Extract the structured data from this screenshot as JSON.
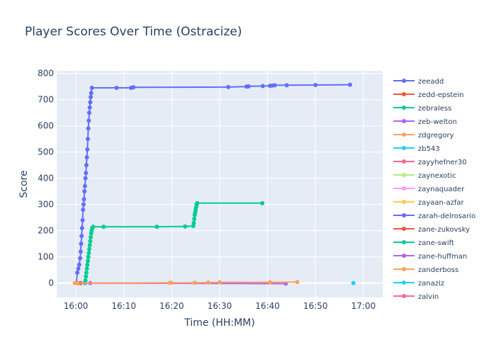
{
  "chart_data": {
    "type": "line",
    "title": "Player Scores Over Time (Ostracize)",
    "xlabel": "Time (HH:MM)",
    "ylabel": "Score",
    "x_range_minutes": [
      -4,
      64
    ],
    "ylim": [
      -55,
      810
    ],
    "x_ticks": [
      {
        "minute": 0,
        "label": "16:00"
      },
      {
        "minute": 10,
        "label": "16:10"
      },
      {
        "minute": 20,
        "label": "16:20"
      },
      {
        "minute": 30,
        "label": "16:30"
      },
      {
        "minute": 40,
        "label": "16:40"
      },
      {
        "minute": 50,
        "label": "16:50"
      },
      {
        "minute": 60,
        "label": "17:00"
      }
    ],
    "y_ticks": [
      0,
      100,
      200,
      300,
      400,
      500,
      600,
      700,
      800
    ],
    "grid": true,
    "legend_position": "right",
    "legend_truncated": true,
    "series": [
      {
        "name": "zeeadd",
        "color": "#636efa",
        "minutes": [
          0.1,
          0.3,
          0.5,
          0.7,
          0.9,
          1.0,
          1.1,
          1.2,
          1.3,
          1.4,
          1.5,
          1.6,
          1.7,
          1.8,
          1.9,
          2.0,
          2.1,
          2.2,
          2.3,
          2.4,
          2.5,
          2.6,
          2.7,
          2.8,
          2.9,
          3.0,
          3.1,
          3.2,
          3.35,
          8.5,
          11.5,
          12.0,
          31.8,
          35.6,
          36.0,
          39.0,
          40.5,
          41.0,
          41.5,
          44.0,
          50.0,
          57.2
        ],
        "values": [
          0,
          40,
          55,
          70,
          95,
          120,
          150,
          180,
          210,
          240,
          280,
          300,
          320,
          350,
          370,
          400,
          420,
          450,
          480,
          510,
          550,
          590,
          620,
          650,
          670,
          690,
          710,
          725,
          745,
          745,
          745,
          747,
          748,
          750,
          751,
          752,
          753,
          754,
          755,
          755,
          756,
          757
        ]
      },
      {
        "name": "zedd-epstein",
        "color": "#ef553b",
        "minutes": [
          0.4,
          1.0
        ],
        "values": [
          0,
          0
        ]
      },
      {
        "name": "zebraless",
        "color": "#00cc96",
        "minutes": [
          1.9,
          2.0,
          2.1,
          2.2,
          2.3,
          2.4,
          2.5,
          2.6,
          2.7,
          2.8,
          2.9,
          3.0,
          3.1,
          3.2,
          3.3,
          3.4,
          3.6,
          5.8,
          16.9,
          22.8,
          24.5,
          24.6,
          24.7,
          24.8,
          24.9,
          25.0,
          25.1,
          25.2,
          25.3,
          38.9
        ],
        "values": [
          0,
          10,
          25,
          40,
          55,
          70,
          85,
          100,
          115,
          130,
          145,
          160,
          175,
          190,
          200,
          210,
          215,
          215,
          215,
          216,
          218,
          230,
          245,
          260,
          270,
          280,
          290,
          300,
          305,
          305
        ]
      },
      {
        "name": "zeb-welton",
        "color": "#ab63fa",
        "minutes": [
          0.2,
          3.0,
          43.8
        ],
        "values": [
          0,
          0,
          -2
        ]
      },
      {
        "name": "zdgregory",
        "color": "#ffa15a",
        "minutes": [
          -0.2,
          0.3,
          19.6,
          19.9,
          24.8,
          27.6,
          30.0,
          40.5,
          46.2
        ],
        "values": [
          0,
          0,
          1,
          1,
          1,
          2,
          3,
          3,
          4
        ]
      },
      {
        "name": "zb543",
        "color": "#19d3f3",
        "minutes": [
          57.9
        ],
        "values": [
          0
        ]
      },
      {
        "name": "zayyhefner30",
        "color": "#ff6692",
        "minutes": [],
        "values": []
      },
      {
        "name": "zaynexotic",
        "color": "#b6e880",
        "minutes": [],
        "values": []
      },
      {
        "name": "zaynaquader",
        "color": "#ff97ff",
        "minutes": [],
        "values": []
      },
      {
        "name": "zayaan-azfar",
        "color": "#fecb52",
        "minutes": [],
        "values": []
      },
      {
        "name": "zarah-delrosario",
        "color": "#636efa",
        "minutes": [],
        "values": []
      },
      {
        "name": "zane-zukovsky",
        "color": "#ef553b",
        "minutes": [],
        "values": []
      },
      {
        "name": "zane-swift",
        "color": "#00cc96",
        "minutes": [],
        "values": []
      },
      {
        "name": "zane-huffman",
        "color": "#ab63fa",
        "minutes": [],
        "values": []
      },
      {
        "name": "zanderboss",
        "color": "#ffa15a",
        "minutes": [],
        "values": []
      },
      {
        "name": "zanaziz",
        "color": "#19d3f3",
        "minutes": [],
        "values": []
      },
      {
        "name": "zalvin",
        "color": "#ff6692",
        "minutes": [],
        "values": []
      }
    ]
  }
}
